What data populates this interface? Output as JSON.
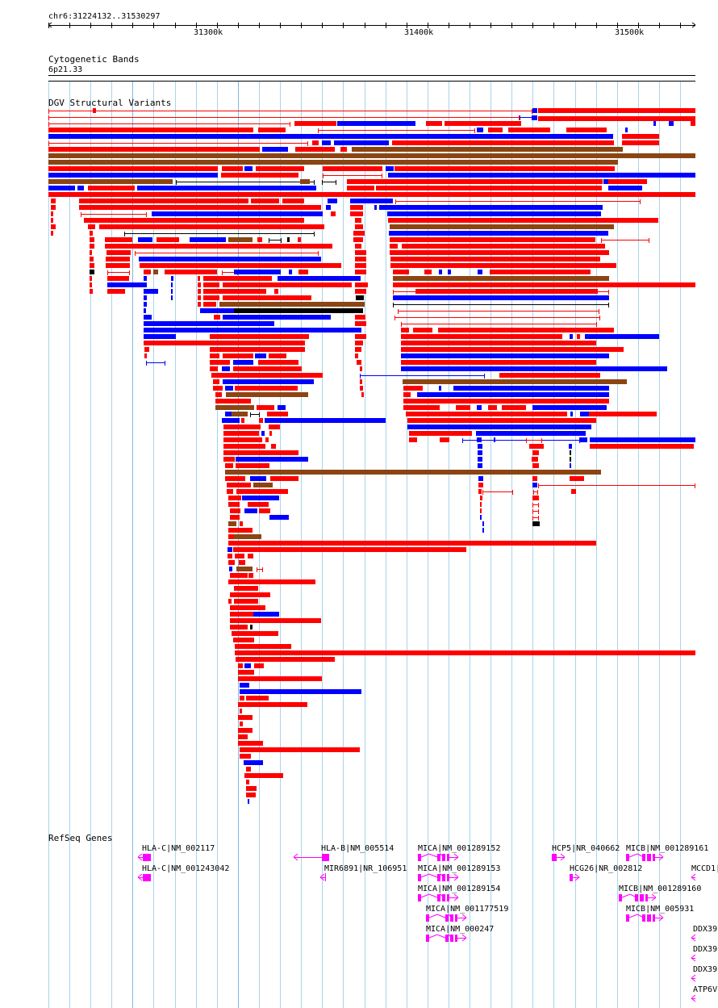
{
  "ruler": {
    "location": "chr6:31224132..31530297",
    "ticks": [
      "31300k",
      "31400k",
      "31500k"
    ]
  },
  "cytoband": {
    "title": "Cytogenetic Bands",
    "band": "6p21.33"
  },
  "dgv": {
    "title": "DGV Structural Variants"
  },
  "refseq": {
    "title": "RefSeq Genes",
    "genes": [
      "HLA-C|NM_002117",
      "HLA-C|NM_001243042",
      "HLA-B|NM_005514",
      "MIR6891|NR_106951",
      "MICA|NM_001289152",
      "MICA|NM_001289153",
      "MICA|NM_001289154",
      "MICA|NM_001177519",
      "MICA|NM_000247",
      "HCP5|NR_040662",
      "HCG26|NR_002812",
      "MICB|NM_001289161",
      "MICB|NM_001289160",
      "MICB|NM_005931",
      "MCCD1|",
      "DDX39",
      "DDX39",
      "DDX39",
      "ATP6V"
    ]
  },
  "colors": {
    "loss": "#ff0000",
    "gain": "#0000ff",
    "gain_loss": "#8b4513",
    "other": "#000000",
    "gene": "#ff00ff",
    "grid": "#a8d4ec"
  }
}
